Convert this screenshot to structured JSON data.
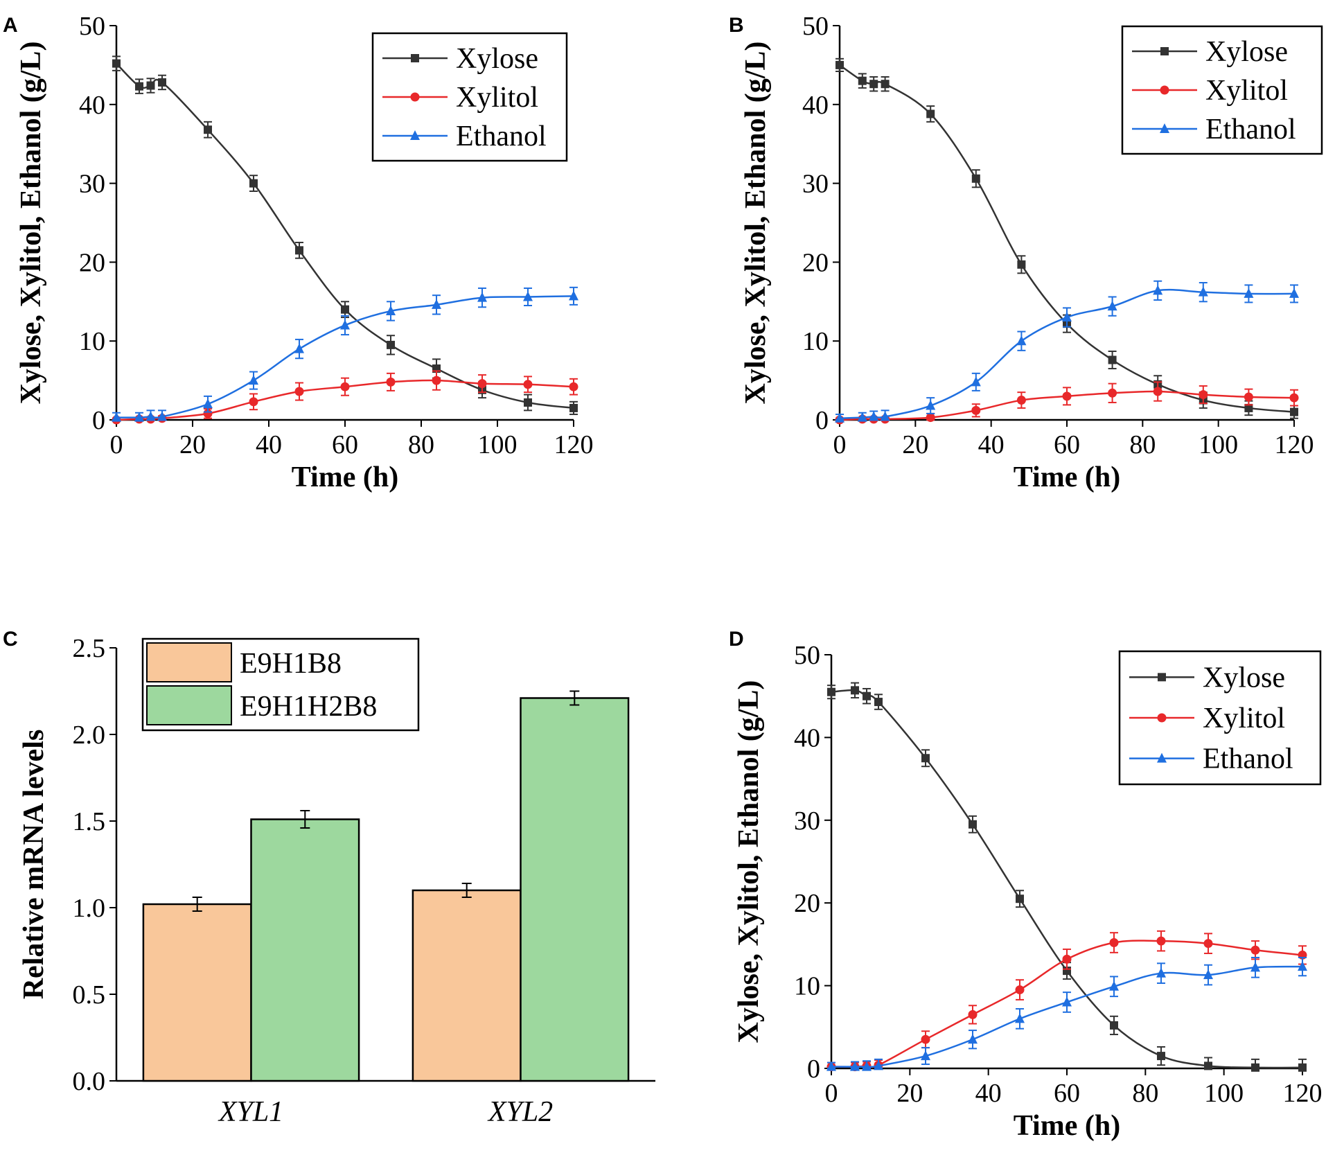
{
  "colors": {
    "xylose": "#333333",
    "xylitol": "#e8282a",
    "ethanol": "#1f6fe0",
    "e9h1b8": "#f9c79a",
    "e9h1h2b8": "#9dd89e"
  },
  "chart_data": [
    {
      "panel": "A",
      "type": "line",
      "xlabel": "Time (h)",
      "ylabel": "Xylose, Xylitol, Ethanol (g/L)",
      "xlim": [
        0,
        120
      ],
      "ylim": [
        0,
        50
      ],
      "xticks": [
        0,
        20,
        40,
        60,
        80,
        100,
        120
      ],
      "yticks": [
        0,
        10,
        20,
        30,
        40,
        50
      ],
      "legend_position": "top-right",
      "series": [
        {
          "key": "xylose",
          "name": "Xylose",
          "marker": "square",
          "x": [
            0,
            6,
            9,
            12,
            24,
            36,
            48,
            60,
            72,
            84,
            96,
            108,
            120
          ],
          "y": [
            45.2,
            42.3,
            42.4,
            42.8,
            36.8,
            30.0,
            21.5,
            14.0,
            9.5,
            6.5,
            3.8,
            2.2,
            1.5
          ],
          "err": [
            0.9,
            0.9,
            0.9,
            0.9,
            1.0,
            1.0,
            1.0,
            1.0,
            1.2,
            1.2,
            1.0,
            1.0,
            0.8
          ]
        },
        {
          "key": "xylitol",
          "name": "Xylitol",
          "marker": "circle",
          "x": [
            0,
            6,
            9,
            12,
            24,
            36,
            48,
            60,
            72,
            84,
            96,
            108,
            120
          ],
          "y": [
            0.0,
            0.1,
            0.1,
            0.2,
            0.8,
            2.3,
            3.6,
            4.2,
            4.8,
            5.0,
            4.6,
            4.5,
            4.2
          ],
          "err": [
            0.2,
            0.2,
            0.2,
            0.3,
            0.6,
            1.0,
            1.1,
            1.1,
            1.1,
            1.2,
            1.1,
            1.0,
            1.0
          ]
        },
        {
          "key": "ethanol",
          "name": "Ethanol",
          "marker": "triangle",
          "x": [
            0,
            6,
            9,
            12,
            24,
            36,
            48,
            60,
            72,
            84,
            96,
            108,
            120
          ],
          "y": [
            0.3,
            0.3,
            0.4,
            0.4,
            2.0,
            5.0,
            9.0,
            12.0,
            13.8,
            14.6,
            15.5,
            15.6,
            15.7
          ],
          "err": [
            0.6,
            0.6,
            0.8,
            0.8,
            1.0,
            1.1,
            1.2,
            1.2,
            1.2,
            1.2,
            1.2,
            1.1,
            1.1
          ]
        }
      ]
    },
    {
      "panel": "B",
      "type": "line",
      "xlabel": "Time (h)",
      "ylabel": "Xylose, Xylitol, Ethanol (g/L)",
      "xlim": [
        0,
        120
      ],
      "ylim": [
        0,
        50
      ],
      "xticks": [
        0,
        20,
        40,
        60,
        80,
        100,
        120
      ],
      "yticks": [
        0,
        10,
        20,
        30,
        40,
        50
      ],
      "legend_position": "top-right",
      "series": [
        {
          "key": "xylose",
          "name": "Xylose",
          "marker": "square",
          "x": [
            0,
            6,
            9,
            12,
            24,
            36,
            48,
            60,
            72,
            84,
            96,
            108,
            120
          ],
          "y": [
            45.0,
            43.0,
            42.6,
            42.6,
            38.8,
            30.6,
            19.7,
            12.2,
            7.6,
            4.5,
            2.5,
            1.5,
            1.0
          ],
          "err": [
            0.8,
            0.9,
            0.9,
            0.9,
            1.0,
            1.1,
            1.1,
            1.1,
            1.1,
            1.1,
            1.0,
            0.9,
            0.8
          ]
        },
        {
          "key": "xylitol",
          "name": "Xylitol",
          "marker": "circle",
          "x": [
            0,
            6,
            9,
            12,
            24,
            36,
            48,
            60,
            72,
            84,
            96,
            108,
            120
          ],
          "y": [
            0.0,
            0.1,
            0.1,
            0.1,
            0.3,
            1.2,
            2.5,
            3.0,
            3.4,
            3.6,
            3.2,
            2.9,
            2.8
          ],
          "err": [
            0.2,
            0.2,
            0.2,
            0.2,
            0.5,
            0.8,
            1.0,
            1.1,
            1.2,
            1.2,
            1.1,
            1.0,
            1.0
          ]
        },
        {
          "key": "ethanol",
          "name": "Ethanol",
          "marker": "triangle",
          "x": [
            0,
            6,
            9,
            12,
            24,
            36,
            48,
            60,
            72,
            84,
            96,
            108,
            120
          ],
          "y": [
            0.2,
            0.3,
            0.4,
            0.4,
            1.8,
            4.8,
            10.0,
            13.0,
            14.4,
            16.4,
            16.2,
            16.0,
            16.0
          ],
          "err": [
            0.5,
            0.6,
            0.7,
            0.8,
            1.0,
            1.1,
            1.2,
            1.2,
            1.2,
            1.2,
            1.2,
            1.1,
            1.1
          ]
        }
      ]
    },
    {
      "panel": "C",
      "type": "bar",
      "xlabel": "",
      "ylabel": "Relative mRNA levels",
      "ylim": [
        0,
        2.5
      ],
      "yticks": [
        0.0,
        0.5,
        1.0,
        1.5,
        2.0,
        2.5
      ],
      "ytick_labels": [
        "0.0",
        "0.5",
        "1.0",
        "1.5",
        "2.0",
        "2.5"
      ],
      "categories": [
        "XYL1",
        "XYL2"
      ],
      "legend_position": "top-left",
      "series": [
        {
          "key": "e9h1b8",
          "name": "E9H1B8",
          "values": [
            1.02,
            1.1
          ],
          "err": [
            0.04,
            0.04
          ]
        },
        {
          "key": "e9h1h2b8",
          "name": "E9H1H2B8",
          "values": [
            1.51,
            2.21
          ],
          "err": [
            0.05,
            0.04
          ]
        }
      ]
    },
    {
      "panel": "D",
      "type": "line",
      "xlabel": "Time (h)",
      "ylabel": "Xylose, Xylitol, Ethanol (g/L)",
      "xlim": [
        0,
        120
      ],
      "ylim": [
        0,
        50
      ],
      "xticks": [
        0,
        20,
        40,
        60,
        80,
        100,
        120
      ],
      "yticks": [
        0,
        10,
        20,
        30,
        40,
        50
      ],
      "legend_position": "top-right",
      "series": [
        {
          "key": "xylose",
          "name": "Xylose",
          "marker": "square",
          "x": [
            0,
            6,
            9,
            12,
            24,
            36,
            48,
            60,
            72,
            84,
            96,
            108,
            120
          ],
          "y": [
            45.5,
            45.7,
            45.0,
            44.3,
            37.5,
            29.5,
            20.5,
            11.8,
            5.2,
            1.5,
            0.3,
            0.1,
            0.1
          ],
          "err": [
            0.8,
            0.9,
            0.9,
            0.9,
            1.0,
            1.0,
            1.0,
            1.0,
            1.1,
            1.1,
            1.0,
            1.0,
            1.0
          ]
        },
        {
          "key": "xylitol",
          "name": "Xylitol",
          "marker": "circle",
          "x": [
            0,
            6,
            9,
            12,
            24,
            36,
            48,
            60,
            72,
            84,
            96,
            108,
            120
          ],
          "y": [
            0.2,
            0.2,
            0.3,
            0.4,
            3.5,
            6.5,
            9.5,
            13.2,
            15.2,
            15.4,
            15.1,
            14.3,
            13.7
          ],
          "err": [
            0.5,
            0.5,
            0.5,
            0.6,
            1.0,
            1.1,
            1.2,
            1.2,
            1.2,
            1.2,
            1.2,
            1.1,
            1.1
          ]
        },
        {
          "key": "ethanol",
          "name": "Ethanol",
          "marker": "triangle",
          "x": [
            0,
            6,
            9,
            12,
            24,
            36,
            48,
            60,
            72,
            84,
            96,
            108,
            120
          ],
          "y": [
            0.2,
            0.2,
            0.2,
            0.3,
            1.5,
            3.5,
            6.0,
            8.0,
            9.9,
            11.5,
            11.3,
            12.2,
            12.3
          ],
          "err": [
            0.5,
            0.6,
            0.7,
            0.8,
            1.0,
            1.1,
            1.2,
            1.2,
            1.2,
            1.2,
            1.2,
            1.2,
            1.1
          ]
        }
      ]
    }
  ]
}
